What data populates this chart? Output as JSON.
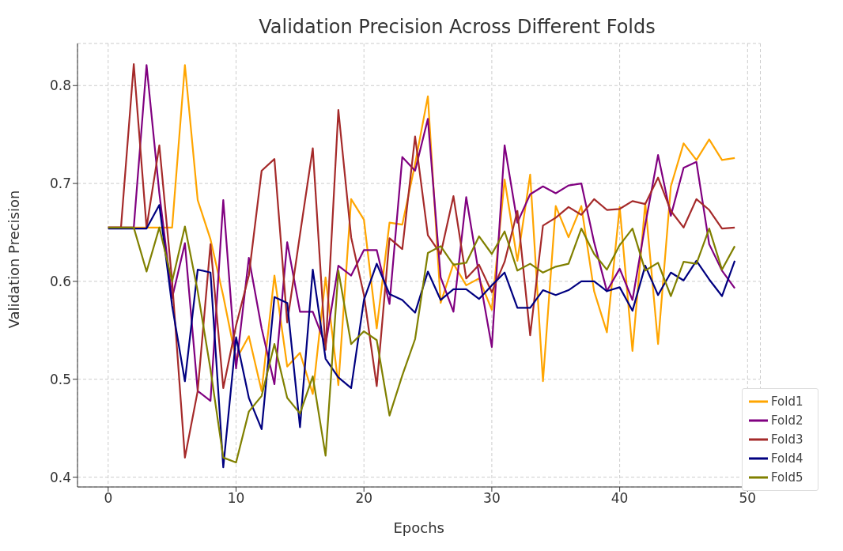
{
  "chart_data": {
    "type": "line",
    "title": "Validation Precision Across Different Folds",
    "xlabel": "Epochs",
    "ylabel": "Validation Precision",
    "x": [
      0,
      1,
      2,
      3,
      4,
      5,
      6,
      7,
      8,
      9,
      10,
      11,
      12,
      13,
      14,
      15,
      16,
      17,
      18,
      19,
      20,
      21,
      22,
      23,
      24,
      25,
      26,
      27,
      28,
      29,
      30,
      31,
      32,
      33,
      34,
      35,
      36,
      37,
      38,
      39,
      40,
      41,
      42,
      43,
      44,
      45,
      46,
      47,
      48,
      49
    ],
    "series": [
      {
        "name": "Fold1",
        "color": "#ffa500",
        "values": [
          0.655,
          0.655,
          0.655,
          0.655,
          0.655,
          0.655,
          0.821,
          0.683,
          0.643,
          0.585,
          0.52,
          0.544,
          0.488,
          0.606,
          0.513,
          0.527,
          0.485,
          0.604,
          0.494,
          0.684,
          0.663,
          0.552,
          0.66,
          0.658,
          0.72,
          0.789,
          0.578,
          0.618,
          0.596,
          0.603,
          0.571,
          0.704,
          0.621,
          0.709,
          0.498,
          0.677,
          0.645,
          0.677,
          0.59,
          0.548,
          0.676,
          0.529,
          0.68,
          0.536,
          0.697,
          0.741,
          0.724,
          0.745,
          0.724,
          0.726
        ]
      },
      {
        "name": "Fold2",
        "color": "#800080",
        "values": [
          0.655,
          0.655,
          0.655,
          0.821,
          0.69,
          0.583,
          0.639,
          0.488,
          0.478,
          0.683,
          0.511,
          0.624,
          0.552,
          0.495,
          0.64,
          0.569,
          0.569,
          0.535,
          0.616,
          0.606,
          0.632,
          0.632,
          0.577,
          0.727,
          0.713,
          0.766,
          0.604,
          0.569,
          0.686,
          0.607,
          0.533,
          0.739,
          0.66,
          0.689,
          0.697,
          0.69,
          0.698,
          0.7,
          0.64,
          0.59,
          0.613,
          0.581,
          0.658,
          0.729,
          0.667,
          0.716,
          0.722,
          0.638,
          0.611,
          0.593
        ]
      },
      {
        "name": "Fold3",
        "color": "#a52a2a",
        "values": [
          0.655,
          0.655,
          0.822,
          0.655,
          0.739,
          0.6,
          0.42,
          0.488,
          0.638,
          0.491,
          0.555,
          0.606,
          0.713,
          0.725,
          0.558,
          0.648,
          0.736,
          0.53,
          0.775,
          0.645,
          0.586,
          0.493,
          0.644,
          0.633,
          0.748,
          0.647,
          0.628,
          0.687,
          0.603,
          0.617,
          0.589,
          0.62,
          0.672,
          0.545,
          0.657,
          0.665,
          0.676,
          0.668,
          0.684,
          0.673,
          0.674,
          0.682,
          0.679,
          0.706,
          0.672,
          0.655,
          0.684,
          0.673,
          0.654,
          0.655
        ]
      },
      {
        "name": "Fold4",
        "color": "#000080",
        "values": [
          0.654,
          0.654,
          0.654,
          0.654,
          0.678,
          0.575,
          0.498,
          0.612,
          0.609,
          0.41,
          0.543,
          0.481,
          0.449,
          0.584,
          0.578,
          0.451,
          0.612,
          0.521,
          0.502,
          0.491,
          0.581,
          0.618,
          0.587,
          0.581,
          0.568,
          0.61,
          0.581,
          0.592,
          0.592,
          0.582,
          0.596,
          0.609,
          0.573,
          0.573,
          0.591,
          0.586,
          0.591,
          0.6,
          0.6,
          0.59,
          0.594,
          0.57,
          0.616,
          0.586,
          0.609,
          0.601,
          0.621,
          0.602,
          0.585,
          0.621
        ]
      },
      {
        "name": "Fold5",
        "color": "#808000",
        "values": [
          0.655,
          0.655,
          0.655,
          0.61,
          0.655,
          0.6,
          0.656,
          0.59,
          0.51,
          0.42,
          0.415,
          0.467,
          0.483,
          0.536,
          0.481,
          0.465,
          0.503,
          0.422,
          0.611,
          0.536,
          0.549,
          0.54,
          0.463,
          0.504,
          0.541,
          0.629,
          0.636,
          0.617,
          0.619,
          0.646,
          0.628,
          0.651,
          0.611,
          0.618,
          0.609,
          0.615,
          0.618,
          0.654,
          0.628,
          0.612,
          0.637,
          0.654,
          0.611,
          0.619,
          0.585,
          0.62,
          0.618,
          0.654,
          0.612,
          0.636
        ]
      }
    ],
    "xlim": [
      -2.4,
      51
    ],
    "ylim": [
      0.39,
      0.843
    ],
    "xticks": [
      0,
      10,
      20,
      30,
      40,
      50
    ],
    "yticks": [
      0.4,
      0.5,
      0.6,
      0.7,
      0.8
    ],
    "grid": true,
    "legend": "bottom right"
  }
}
